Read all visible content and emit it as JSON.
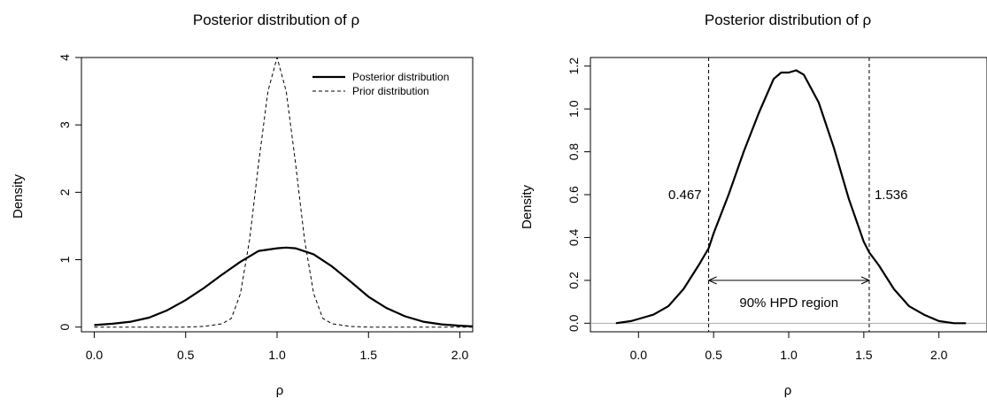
{
  "chart_data": [
    {
      "type": "line",
      "title": "Posterior distribution of ρ",
      "xlabel": "ρ",
      "ylabel": "Density",
      "xlim": [
        -0.07,
        2.07
      ],
      "ylim": [
        -0.07,
        4.0
      ],
      "x_ticks": [
        "0.0",
        "0.5",
        "1.0",
        "1.5",
        "2.0"
      ],
      "y_ticks": [
        "0",
        "1",
        "2",
        "3",
        "4"
      ],
      "legend": {
        "position": "top-right",
        "entries": [
          "Posterior distribution",
          "Prior distribution"
        ]
      },
      "series": [
        {
          "name": "Posterior distribution",
          "style": "solid",
          "x": [
            0.0,
            0.1,
            0.2,
            0.3,
            0.4,
            0.5,
            0.6,
            0.7,
            0.8,
            0.9,
            1.0,
            1.05,
            1.1,
            1.2,
            1.3,
            1.4,
            1.5,
            1.6,
            1.7,
            1.8,
            1.9,
            2.0,
            2.07
          ],
          "y": [
            0.03,
            0.05,
            0.08,
            0.14,
            0.25,
            0.4,
            0.58,
            0.78,
            0.97,
            1.13,
            1.17,
            1.18,
            1.17,
            1.08,
            0.9,
            0.68,
            0.45,
            0.28,
            0.16,
            0.08,
            0.04,
            0.02,
            0.01
          ]
        },
        {
          "name": "Prior distribution",
          "style": "dashed",
          "x": [
            0.0,
            0.5,
            0.6,
            0.7,
            0.75,
            0.8,
            0.85,
            0.9,
            0.95,
            1.0,
            1.05,
            1.1,
            1.15,
            1.2,
            1.25,
            1.3,
            1.4,
            1.5,
            2.07
          ],
          "y": [
            0.0,
            0.0,
            0.01,
            0.05,
            0.13,
            0.5,
            1.3,
            2.45,
            3.5,
            4.0,
            3.5,
            2.45,
            1.3,
            0.5,
            0.13,
            0.05,
            0.01,
            0.0,
            0.0
          ]
        }
      ]
    },
    {
      "type": "line",
      "title": "Posterior distribution of ρ",
      "xlabel": "ρ",
      "ylabel": "Density",
      "xlim": [
        -0.32,
        2.32
      ],
      "ylim": [
        -0.04,
        1.24
      ],
      "x_ticks": [
        "0.0",
        "0.5",
        "1.0",
        "1.5",
        "2.0"
      ],
      "y_ticks": [
        "0.0",
        "0.2",
        "0.4",
        "0.6",
        "0.8",
        "1.0",
        "1.2"
      ],
      "baseline": 0,
      "series": [
        {
          "style": "solid",
          "x": [
            -0.15,
            -0.05,
            0.0,
            0.1,
            0.2,
            0.3,
            0.4,
            0.467,
            0.5,
            0.6,
            0.7,
            0.8,
            0.9,
            0.95,
            1.0,
            1.05,
            1.1,
            1.2,
            1.3,
            1.4,
            1.5,
            1.536,
            1.6,
            1.7,
            1.8,
            1.9,
            2.0,
            2.1,
            2.18
          ],
          "y": [
            0.0,
            0.01,
            0.02,
            0.04,
            0.08,
            0.16,
            0.27,
            0.35,
            0.42,
            0.6,
            0.8,
            0.98,
            1.14,
            1.17,
            1.17,
            1.18,
            1.16,
            1.03,
            0.82,
            0.58,
            0.38,
            0.33,
            0.27,
            0.16,
            0.08,
            0.04,
            0.01,
            0.0,
            0.0
          ]
        }
      ],
      "hpd": {
        "lower": 0.467,
        "upper": 1.536,
        "lower_label": "0.467",
        "upper_label": "1.536",
        "label": "90% HPD region"
      }
    }
  ]
}
